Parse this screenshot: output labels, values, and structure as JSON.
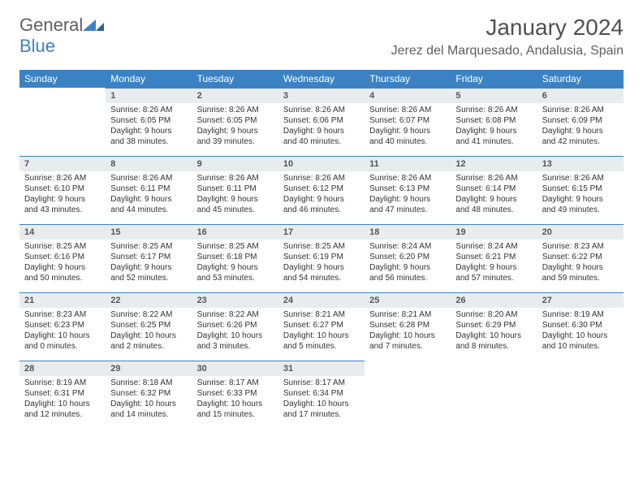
{
  "logo": {
    "text1": "General",
    "text2": "Blue"
  },
  "title": "January 2024",
  "location": "Jerez del Marquesado, Andalusia, Spain",
  "colors": {
    "header_bg": "#3b82c4",
    "header_fg": "#ffffff",
    "daynum_bg": "#e9ecef",
    "border": "#3b82c4"
  },
  "day_headers": [
    "Sunday",
    "Monday",
    "Tuesday",
    "Wednesday",
    "Thursday",
    "Friday",
    "Saturday"
  ],
  "weeks": [
    [
      null,
      {
        "n": "1",
        "sr": "Sunrise: 8:26 AM",
        "ss": "Sunset: 6:05 PM",
        "dl": "Daylight: 9 hours and 38 minutes."
      },
      {
        "n": "2",
        "sr": "Sunrise: 8:26 AM",
        "ss": "Sunset: 6:05 PM",
        "dl": "Daylight: 9 hours and 39 minutes."
      },
      {
        "n": "3",
        "sr": "Sunrise: 8:26 AM",
        "ss": "Sunset: 6:06 PM",
        "dl": "Daylight: 9 hours and 40 minutes."
      },
      {
        "n": "4",
        "sr": "Sunrise: 8:26 AM",
        "ss": "Sunset: 6:07 PM",
        "dl": "Daylight: 9 hours and 40 minutes."
      },
      {
        "n": "5",
        "sr": "Sunrise: 8:26 AM",
        "ss": "Sunset: 6:08 PM",
        "dl": "Daylight: 9 hours and 41 minutes."
      },
      {
        "n": "6",
        "sr": "Sunrise: 8:26 AM",
        "ss": "Sunset: 6:09 PM",
        "dl": "Daylight: 9 hours and 42 minutes."
      }
    ],
    [
      {
        "n": "7",
        "sr": "Sunrise: 8:26 AM",
        "ss": "Sunset: 6:10 PM",
        "dl": "Daylight: 9 hours and 43 minutes."
      },
      {
        "n": "8",
        "sr": "Sunrise: 8:26 AM",
        "ss": "Sunset: 6:11 PM",
        "dl": "Daylight: 9 hours and 44 minutes."
      },
      {
        "n": "9",
        "sr": "Sunrise: 8:26 AM",
        "ss": "Sunset: 6:11 PM",
        "dl": "Daylight: 9 hours and 45 minutes."
      },
      {
        "n": "10",
        "sr": "Sunrise: 8:26 AM",
        "ss": "Sunset: 6:12 PM",
        "dl": "Daylight: 9 hours and 46 minutes."
      },
      {
        "n": "11",
        "sr": "Sunrise: 8:26 AM",
        "ss": "Sunset: 6:13 PM",
        "dl": "Daylight: 9 hours and 47 minutes."
      },
      {
        "n": "12",
        "sr": "Sunrise: 8:26 AM",
        "ss": "Sunset: 6:14 PM",
        "dl": "Daylight: 9 hours and 48 minutes."
      },
      {
        "n": "13",
        "sr": "Sunrise: 8:26 AM",
        "ss": "Sunset: 6:15 PM",
        "dl": "Daylight: 9 hours and 49 minutes."
      }
    ],
    [
      {
        "n": "14",
        "sr": "Sunrise: 8:25 AM",
        "ss": "Sunset: 6:16 PM",
        "dl": "Daylight: 9 hours and 50 minutes."
      },
      {
        "n": "15",
        "sr": "Sunrise: 8:25 AM",
        "ss": "Sunset: 6:17 PM",
        "dl": "Daylight: 9 hours and 52 minutes."
      },
      {
        "n": "16",
        "sr": "Sunrise: 8:25 AM",
        "ss": "Sunset: 6:18 PM",
        "dl": "Daylight: 9 hours and 53 minutes."
      },
      {
        "n": "17",
        "sr": "Sunrise: 8:25 AM",
        "ss": "Sunset: 6:19 PM",
        "dl": "Daylight: 9 hours and 54 minutes."
      },
      {
        "n": "18",
        "sr": "Sunrise: 8:24 AM",
        "ss": "Sunset: 6:20 PM",
        "dl": "Daylight: 9 hours and 56 minutes."
      },
      {
        "n": "19",
        "sr": "Sunrise: 8:24 AM",
        "ss": "Sunset: 6:21 PM",
        "dl": "Daylight: 9 hours and 57 minutes."
      },
      {
        "n": "20",
        "sr": "Sunrise: 8:23 AM",
        "ss": "Sunset: 6:22 PM",
        "dl": "Daylight: 9 hours and 59 minutes."
      }
    ],
    [
      {
        "n": "21",
        "sr": "Sunrise: 8:23 AM",
        "ss": "Sunset: 6:23 PM",
        "dl": "Daylight: 10 hours and 0 minutes."
      },
      {
        "n": "22",
        "sr": "Sunrise: 8:22 AM",
        "ss": "Sunset: 6:25 PM",
        "dl": "Daylight: 10 hours and 2 minutes."
      },
      {
        "n": "23",
        "sr": "Sunrise: 8:22 AM",
        "ss": "Sunset: 6:26 PM",
        "dl": "Daylight: 10 hours and 3 minutes."
      },
      {
        "n": "24",
        "sr": "Sunrise: 8:21 AM",
        "ss": "Sunset: 6:27 PM",
        "dl": "Daylight: 10 hours and 5 minutes."
      },
      {
        "n": "25",
        "sr": "Sunrise: 8:21 AM",
        "ss": "Sunset: 6:28 PM",
        "dl": "Daylight: 10 hours and 7 minutes."
      },
      {
        "n": "26",
        "sr": "Sunrise: 8:20 AM",
        "ss": "Sunset: 6:29 PM",
        "dl": "Daylight: 10 hours and 8 minutes."
      },
      {
        "n": "27",
        "sr": "Sunrise: 8:19 AM",
        "ss": "Sunset: 6:30 PM",
        "dl": "Daylight: 10 hours and 10 minutes."
      }
    ],
    [
      {
        "n": "28",
        "sr": "Sunrise: 8:19 AM",
        "ss": "Sunset: 6:31 PM",
        "dl": "Daylight: 10 hours and 12 minutes."
      },
      {
        "n": "29",
        "sr": "Sunrise: 8:18 AM",
        "ss": "Sunset: 6:32 PM",
        "dl": "Daylight: 10 hours and 14 minutes."
      },
      {
        "n": "30",
        "sr": "Sunrise: 8:17 AM",
        "ss": "Sunset: 6:33 PM",
        "dl": "Daylight: 10 hours and 15 minutes."
      },
      {
        "n": "31",
        "sr": "Sunrise: 8:17 AM",
        "ss": "Sunset: 6:34 PM",
        "dl": "Daylight: 10 hours and 17 minutes."
      },
      null,
      null,
      null
    ]
  ]
}
